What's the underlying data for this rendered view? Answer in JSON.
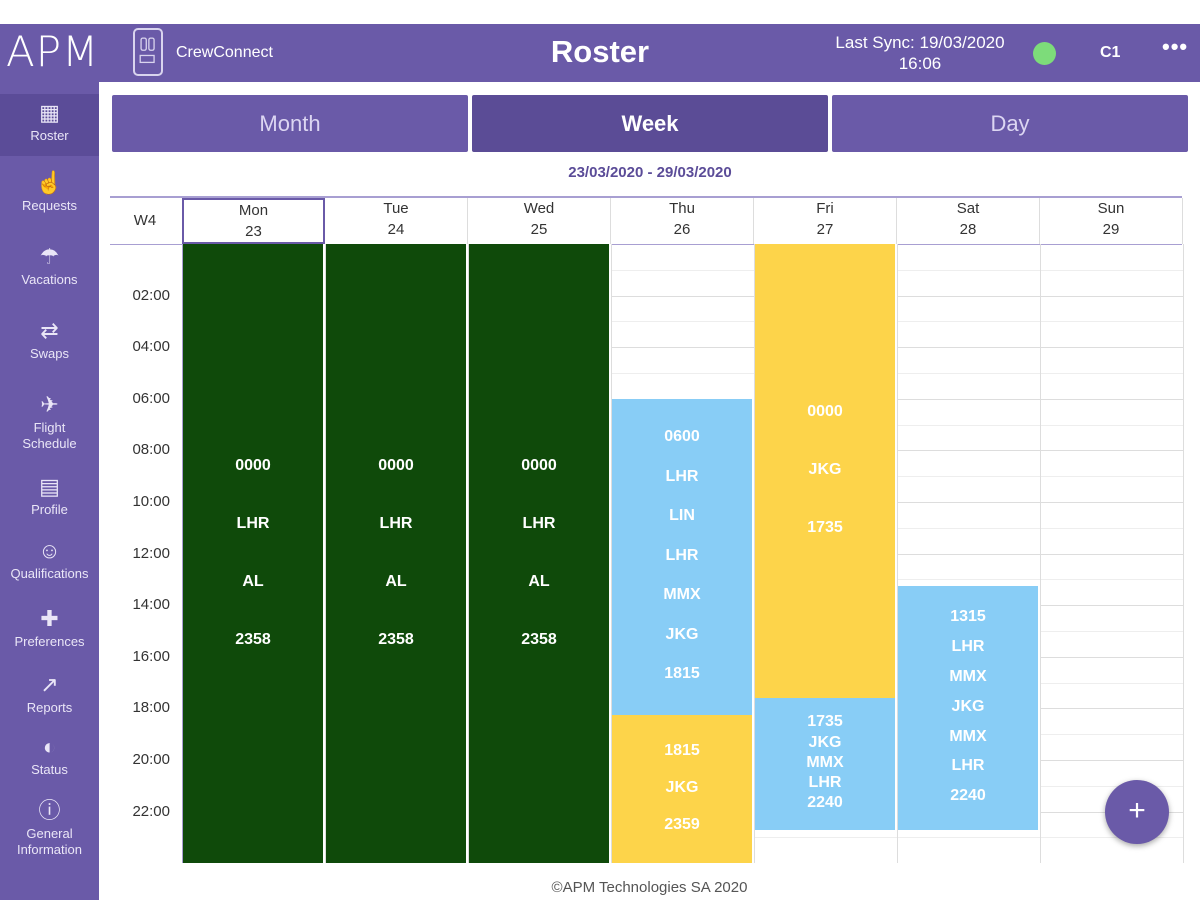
{
  "header": {
    "logo": "APM",
    "brand": "CrewConnect",
    "title": "Roster",
    "sync_line1": "Last Sync: 19/03/2020",
    "sync_line2": "16:06",
    "user": "C1",
    "more": "•••",
    "status_color": "#7ddc7a"
  },
  "sidebar": {
    "items": [
      {
        "label": "Roster",
        "icon": "calendar-icon"
      },
      {
        "label": "Requests",
        "icon": "hand-pointer-icon"
      },
      {
        "label": "Vacations",
        "icon": "beach-umbrella-icon"
      },
      {
        "label": "Swaps",
        "icon": "swap-arrows-icon"
      },
      {
        "label": "Flight\nSchedule",
        "icon": "plane-icon"
      },
      {
        "label": "Profile",
        "icon": "id-card-icon"
      },
      {
        "label": "Qualifications",
        "icon": "user-check-icon"
      },
      {
        "label": "Preferences",
        "icon": "plus-icon"
      },
      {
        "label": "Reports",
        "icon": "chart-icon"
      },
      {
        "label": "Status",
        "icon": "half-circle-icon"
      },
      {
        "label": "General\nInformation",
        "icon": "info-icon"
      }
    ]
  },
  "tabs": [
    {
      "label": "Month",
      "active": false
    },
    {
      "label": "Week",
      "active": true
    },
    {
      "label": "Day",
      "active": false
    }
  ],
  "date_range": "23/03/2020 - 29/03/2020",
  "week_label": "W4",
  "days": [
    {
      "name": "Mon",
      "date": "23"
    },
    {
      "name": "Tue",
      "date": "24"
    },
    {
      "name": "Wed",
      "date": "25"
    },
    {
      "name": "Thu",
      "date": "26"
    },
    {
      "name": "Fri",
      "date": "27"
    },
    {
      "name": "Sat",
      "date": "28"
    },
    {
      "name": "Sun",
      "date": "29"
    }
  ],
  "times": [
    "02:00",
    "04:00",
    "06:00",
    "08:00",
    "10:00",
    "12:00",
    "14:00",
    "16:00",
    "18:00",
    "20:00",
    "22:00"
  ],
  "duties": [
    {
      "day": 0,
      "start_hour": 0,
      "end_hour": 24,
      "color": "#0f4a0a",
      "lines": [
        "0000",
        "LHR",
        "AL",
        "2358"
      ]
    },
    {
      "day": 1,
      "start_hour": 0,
      "end_hour": 24,
      "color": "#0f4a0a",
      "lines": [
        "0000",
        "LHR",
        "AL",
        "2358"
      ]
    },
    {
      "day": 2,
      "start_hour": 0,
      "end_hour": 24,
      "color": "#0f4a0a",
      "lines": [
        "0000",
        "LHR",
        "AL",
        "2358"
      ]
    },
    {
      "day": 3,
      "start_hour": 6,
      "end_hour": 18.25,
      "color": "#88cdf6",
      "lines": [
        "0600",
        "LHR",
        "LIN",
        "LHR",
        "MMX",
        "JKG",
        "1815"
      ]
    },
    {
      "day": 3,
      "start_hour": 18.25,
      "end_hour": 24,
      "color": "#fdd44a",
      "lines": [
        "1815",
        "JKG",
        "2359"
      ]
    },
    {
      "day": 4,
      "start_hour": 0,
      "end_hour": 17.6,
      "color": "#fdd44a",
      "lines": [
        "0000",
        "JKG",
        "1735"
      ]
    },
    {
      "day": 4,
      "start_hour": 17.6,
      "end_hour": 22.7,
      "color": "#88cdf6",
      "lines": [
        "1735",
        "JKG",
        "MMX",
        "LHR",
        "2240"
      ]
    },
    {
      "day": 5,
      "start_hour": 13.25,
      "end_hour": 22.7,
      "color": "#88cdf6",
      "lines": [
        "1315",
        "LHR",
        "MMX",
        "JKG",
        "MMX",
        "LHR",
        "2240"
      ]
    }
  ],
  "fab_label": "+",
  "footer": "©APM Technologies SA 2020"
}
